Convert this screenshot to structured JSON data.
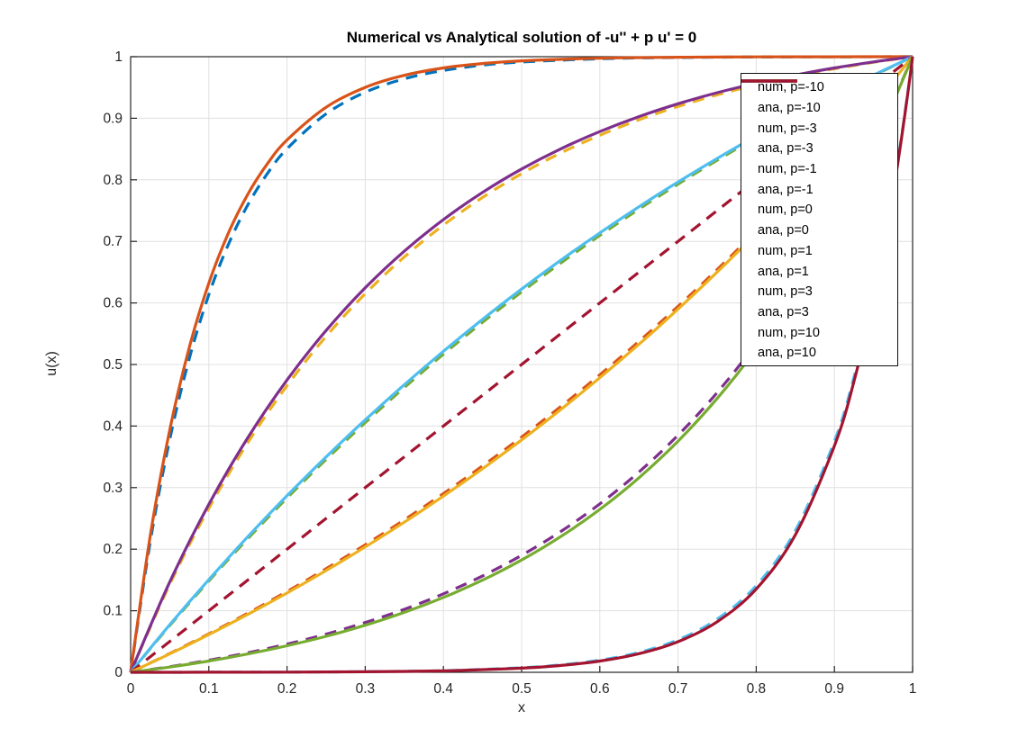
{
  "figure": {
    "title": "Numerical vs Analytical solution of -u'' + p u' = 0",
    "xlabel": "x",
    "ylabel": "u(x)"
  },
  "chart_data": {
    "type": "line",
    "title": "Numerical vs Analytical solution of -u'' + p u' = 0",
    "xlabel": "x",
    "ylabel": "u(x)",
    "xlim": [
      0,
      1
    ],
    "ylim": [
      0,
      1
    ],
    "grid": true,
    "legend_position": "northeast-inside",
    "axis_color": "#262626",
    "grid_color": "#e0e0e0",
    "line_width": 3.2,
    "dash_pattern": [
      13,
      9
    ],
    "xticks": {
      "values": [
        0,
        0.1,
        0.2,
        0.3,
        0.4,
        0.5,
        0.6,
        0.7,
        0.8,
        0.9,
        1
      ],
      "labels": [
        "0",
        "0.1",
        "0.2",
        "0.3",
        "0.4",
        "0.5",
        "0.6",
        "0.7",
        "0.8",
        "0.9",
        "1"
      ]
    },
    "yticks": {
      "values": [
        0,
        0.1,
        0.2,
        0.3,
        0.4,
        0.5,
        0.6,
        0.7,
        0.8,
        0.9,
        1
      ],
      "labels": [
        "0",
        "0.1",
        "0.2",
        "0.3",
        "0.4",
        "0.5",
        "0.6",
        "0.7",
        "0.8",
        "0.9",
        "1"
      ]
    },
    "x_grids": {
      "std": [
        0,
        0.05,
        0.1,
        0.15,
        0.2,
        0.25,
        0.3,
        0.35,
        0.4,
        0.45,
        0.5,
        0.55,
        0.6,
        0.65,
        0.7,
        0.75,
        0.8,
        0.85,
        0.9,
        0.95,
        1
      ],
      "neg10": [
        0,
        0.025,
        0.05,
        0.075,
        0.1,
        0.125,
        0.15,
        0.175,
        0.2,
        0.25,
        0.3,
        0.35,
        0.4,
        0.45,
        0.5,
        0.6,
        0.7,
        0.8,
        0.9,
        1
      ],
      "pos10": [
        0,
        0.1,
        0.2,
        0.3,
        0.4,
        0.5,
        0.55,
        0.6,
        0.65,
        0.7,
        0.75,
        0.8,
        0.85,
        0.9,
        0.925,
        0.95,
        0.975,
        0.99,
        1
      ]
    },
    "series": [
      {
        "name": "num, p=-10",
        "kind": "numerical",
        "p": -10,
        "color": "#0072BD",
        "dash": true,
        "x_grid": "neg10",
        "y": [
          0,
          0.2114,
          0.3781,
          0.5096,
          0.6134,
          0.6951,
          0.7596,
          0.8104,
          0.8505,
          0.9071,
          0.9422,
          0.9641,
          0.9777,
          0.9862,
          0.9914,
          0.9967,
          0.9987,
          0.9995,
          0.9998,
          1
        ]
      },
      {
        "name": "ana, p=-10",
        "kind": "analytical",
        "p": -10,
        "color": "#D95319",
        "dash": false,
        "x_grid": "neg10",
        "y": [
          0,
          0.2212,
          0.3935,
          0.5277,
          0.6321,
          0.7135,
          0.7769,
          0.8263,
          0.8647,
          0.9179,
          0.9502,
          0.9698,
          0.9817,
          0.9889,
          0.9933,
          0.9975,
          0.9991,
          0.9997,
          0.9999,
          1
        ]
      },
      {
        "name": "num, p=-3",
        "kind": "numerical",
        "p": -3,
        "color": "#EDB120",
        "dash": true,
        "x_grid": "std",
        "y": [
          0,
          0.1428,
          0.2664,
          0.3732,
          0.4657,
          0.5458,
          0.6149,
          0.6747,
          0.7265,
          0.7713,
          0.81,
          0.8436,
          0.8724,
          0.8975,
          0.9192,
          0.938,
          0.9542,
          0.9683,
          0.9804,
          0.9909,
          1
        ]
      },
      {
        "name": "ana, p=-3",
        "kind": "analytical",
        "p": -3,
        "color": "#7E2F8E",
        "dash": false,
        "x_grid": "std",
        "y": [
          0,
          0.1466,
          0.2728,
          0.3814,
          0.4748,
          0.5553,
          0.6245,
          0.6841,
          0.7354,
          0.7796,
          0.8176,
          0.8503,
          0.8784,
          0.9027,
          0.9235,
          0.9415,
          0.9569,
          0.9702,
          0.9817,
          0.9915,
          1
        ]
      },
      {
        "name": "num, p=-1",
        "kind": "numerical",
        "p": -1,
        "color": "#77AC30",
        "dash": true,
        "x_grid": "std",
        "y": [
          0,
          0.0759,
          0.1483,
          0.2173,
          0.2831,
          0.3458,
          0.4055,
          0.4625,
          0.5168,
          0.5685,
          0.6178,
          0.6648,
          0.7096,
          0.7523,
          0.793,
          0.8317,
          0.8686,
          0.9038,
          0.9373,
          0.9693,
          1
        ]
      },
      {
        "name": "ana, p=-1",
        "kind": "analytical",
        "p": -1,
        "color": "#4DBEEE",
        "dash": false,
        "x_grid": "std",
        "y": [
          0,
          0.0772,
          0.1505,
          0.2204,
          0.2868,
          0.3499,
          0.41,
          0.4672,
          0.5215,
          0.5733,
          0.6225,
          0.6693,
          0.7138,
          0.7561,
          0.7964,
          0.8347,
          0.8711,
          0.9058,
          0.9388,
          0.9702,
          1
        ]
      },
      {
        "name": "num, p=0",
        "kind": "numerical",
        "p": 0,
        "color": "#A2142F",
        "dash": true,
        "x_grid": "std",
        "y": [
          0,
          0.05,
          0.1,
          0.15,
          0.2,
          0.25,
          0.3,
          0.35,
          0.4,
          0.45,
          0.5,
          0.55,
          0.6,
          0.65,
          0.7,
          0.75,
          0.8,
          0.85,
          0.9,
          0.95,
          1
        ]
      },
      {
        "name": "ana, p=0",
        "kind": "analytical",
        "p": 0,
        "color": "#0072BD",
        "dash": false,
        "x_grid": "std",
        "curve_visible": false,
        "y": []
      },
      {
        "name": "num, p=1",
        "kind": "numerical",
        "p": 1,
        "color": "#D95319",
        "dash": true,
        "x_grid": "std",
        "y": [
          0,
          0.0305,
          0.0625,
          0.0961,
          0.1313,
          0.1683,
          0.2071,
          0.2477,
          0.2904,
          0.3352,
          0.3822,
          0.4316,
          0.4832,
          0.5375,
          0.5945,
          0.6542,
          0.7169,
          0.7827,
          0.8516,
          0.9241,
          1
        ]
      },
      {
        "name": "ana, p=1",
        "kind": "analytical",
        "p": 1,
        "color": "#EDB120",
        "dash": false,
        "x_grid": "std",
        "y": [
          0,
          0.0298,
          0.0612,
          0.0942,
          0.1288,
          0.1653,
          0.2036,
          0.2439,
          0.2862,
          0.3307,
          0.3775,
          0.4267,
          0.4785,
          0.5328,
          0.59,
          0.6501,
          0.7132,
          0.7796,
          0.8495,
          0.9229,
          1
        ]
      },
      {
        "name": "num, p=3",
        "kind": "numerical",
        "p": 3,
        "color": "#7E2F8E",
        "dash": true,
        "x_grid": "std",
        "y": [
          0,
          0.0091,
          0.0196,
          0.0317,
          0.0458,
          0.062,
          0.0808,
          0.1024,
          0.1275,
          0.1565,
          0.19,
          0.2287,
          0.2735,
          0.3253,
          0.3851,
          0.4543,
          0.5343,
          0.6267,
          0.7336,
          0.8572,
          1
        ]
      },
      {
        "name": "ana, p=3",
        "kind": "analytical",
        "p": 3,
        "color": "#77AC30",
        "dash": false,
        "x_grid": "std",
        "y": [
          0,
          0.0085,
          0.0183,
          0.0298,
          0.0431,
          0.0585,
          0.0765,
          0.0973,
          0.1216,
          0.1497,
          0.1824,
          0.2204,
          0.2646,
          0.3159,
          0.3755,
          0.4447,
          0.5252,
          0.6186,
          0.7272,
          0.8534,
          1
        ]
      },
      {
        "name": "num, p=10",
        "kind": "numerical",
        "p": 10,
        "color": "#4DBEEE",
        "dash": true,
        "x_grid": "pos10",
        "y": [
          0,
          0.0001,
          0.0003,
          0.001,
          0.0027,
          0.0074,
          0.0121,
          0.0198,
          0.0323,
          0.0528,
          0.0862,
          0.1408,
          0.2299,
          0.3753,
          0.4795,
          0.6126,
          0.7828,
          0.9067,
          1
        ]
      },
      {
        "name": "ana, p=10",
        "kind": "analytical",
        "p": 10,
        "color": "#A2142F",
        "dash": false,
        "x_grid": "pos10",
        "y": [
          0,
          0.0001,
          0.0003,
          0.0009,
          0.0024,
          0.0067,
          0.0111,
          0.0183,
          0.0302,
          0.0497,
          0.082,
          0.1353,
          0.2231,
          0.3679,
          0.4724,
          0.6065,
          0.7788,
          0.9048,
          1
        ]
      }
    ]
  }
}
